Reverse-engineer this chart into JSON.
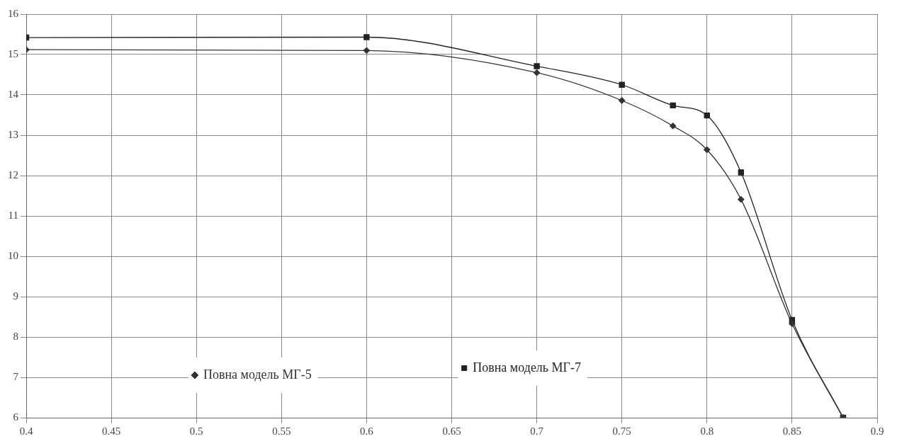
{
  "chart_data": {
    "type": "line",
    "x": [
      0.4,
      0.6,
      0.7,
      0.75,
      0.78,
      0.8,
      0.82,
      0.85,
      0.88
    ],
    "series": [
      {
        "name": "Повна модель МГ-5",
        "color": "#333333",
        "marker": "diamond",
        "values": [
          15.12,
          15.1,
          14.55,
          13.86,
          13.23,
          12.64,
          11.41,
          8.33,
          6
        ]
      },
      {
        "name": "Повна модель МГ-7",
        "color": "#222222",
        "marker": "square",
        "values": [
          15.42,
          15.43,
          14.71,
          14.25,
          13.74,
          13.49,
          12.08,
          8.42,
          6
        ]
      }
    ],
    "xlim": [
      0.4,
      0.9
    ],
    "xticks": [
      0.4,
      0.45,
      0.5,
      0.55,
      0.6,
      0.65,
      0.7,
      0.75,
      0.8,
      0.85,
      0.9
    ],
    "ylim": [
      6,
      16
    ],
    "yticks": [
      6,
      7,
      8,
      9,
      10,
      11,
      12,
      13,
      14,
      15,
      16
    ],
    "grid": true,
    "legend": "bottom",
    "line_style": "solid"
  }
}
